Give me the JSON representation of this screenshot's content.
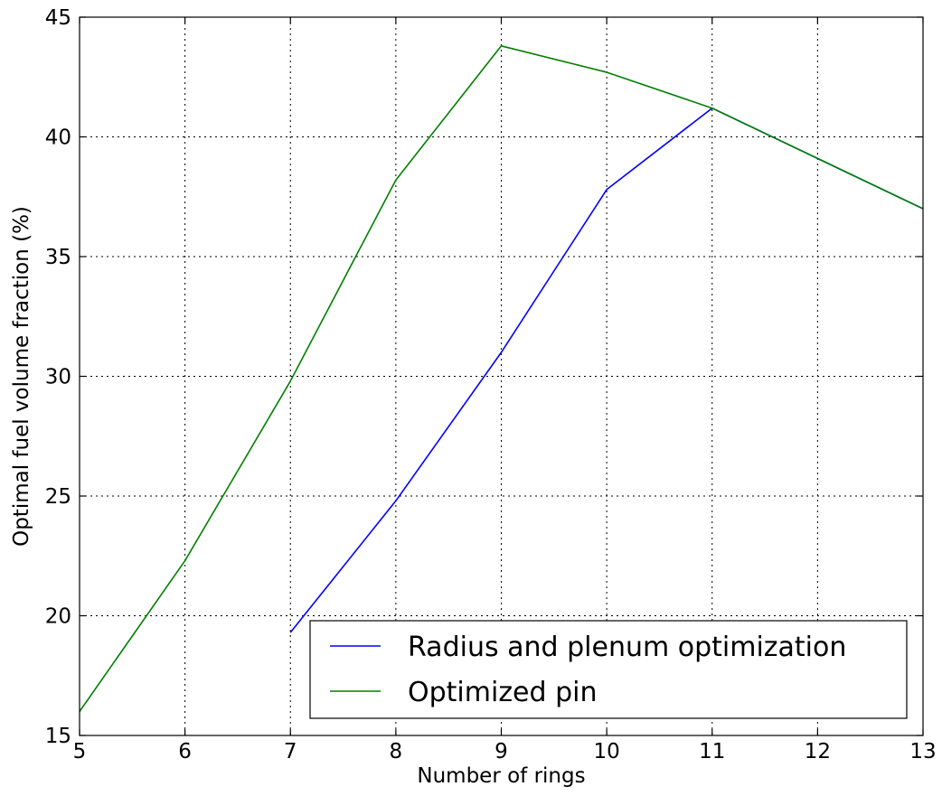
{
  "chart_data": {
    "type": "line",
    "title": "",
    "xlabel": "Number of rings",
    "ylabel": "Optimal fuel volume fraction (%)",
    "xlim": [
      5,
      13
    ],
    "ylim": [
      15,
      45
    ],
    "xticks": [
      5,
      6,
      7,
      8,
      9,
      10,
      11,
      12,
      13
    ],
    "yticks": [
      15,
      20,
      25,
      30,
      35,
      40,
      45
    ],
    "grid": true,
    "legend_position": "lower-right",
    "series": [
      {
        "name": "Radius and plenum optimization",
        "color": "#0000ff",
        "x": [
          7,
          8,
          9,
          10,
          11,
          12,
          13
        ],
        "y": [
          19.3,
          24.8,
          31.0,
          37.8,
          41.2,
          39.1,
          37.0
        ]
      },
      {
        "name": "Optimized pin",
        "color": "#008000",
        "x": [
          5,
          6,
          7,
          8,
          9,
          10,
          11,
          12,
          13
        ],
        "y": [
          16.0,
          22.3,
          29.8,
          38.2,
          43.8,
          42.7,
          41.2,
          39.1,
          37.0
        ]
      }
    ]
  }
}
